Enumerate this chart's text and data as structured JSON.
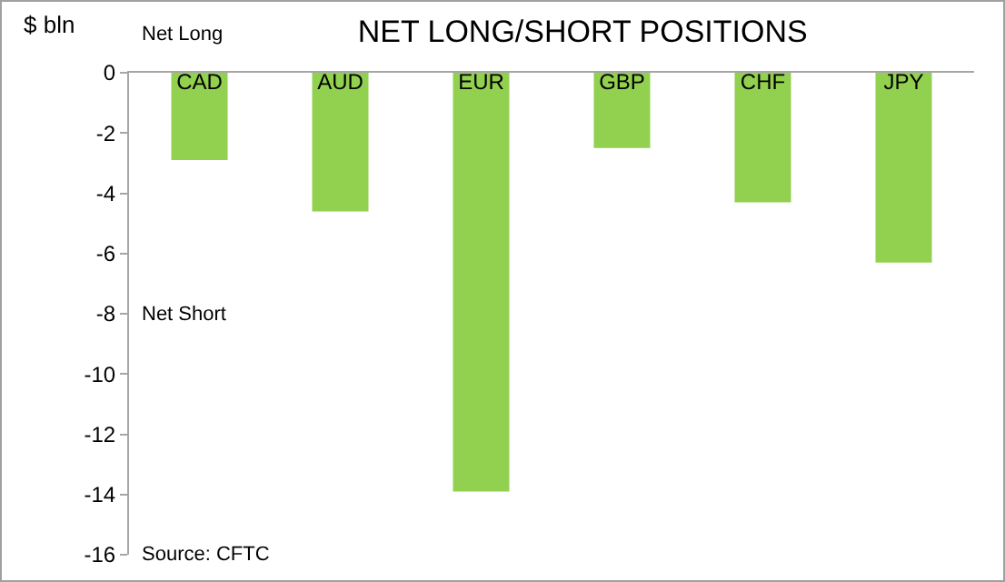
{
  "chart_data": {
    "type": "bar",
    "title": "NET LONG/SHORT POSITIONS",
    "ylabel": "$ bln",
    "categories": [
      "CAD",
      "AUD",
      "EUR",
      "GBP",
      "CHF",
      "JPY"
    ],
    "values": [
      -2.9,
      -4.6,
      -13.9,
      -2.5,
      -4.3,
      -6.3
    ],
    "color": "#92d050",
    "ylim": [
      -16,
      0
    ],
    "yticks": [
      -16,
      -14,
      -12,
      -10,
      -8,
      -6,
      -4,
      -2,
      0
    ],
    "grid": false,
    "legend": false,
    "annotations": [
      "Net Long",
      "Net Short",
      "Source: CFTC"
    ]
  }
}
